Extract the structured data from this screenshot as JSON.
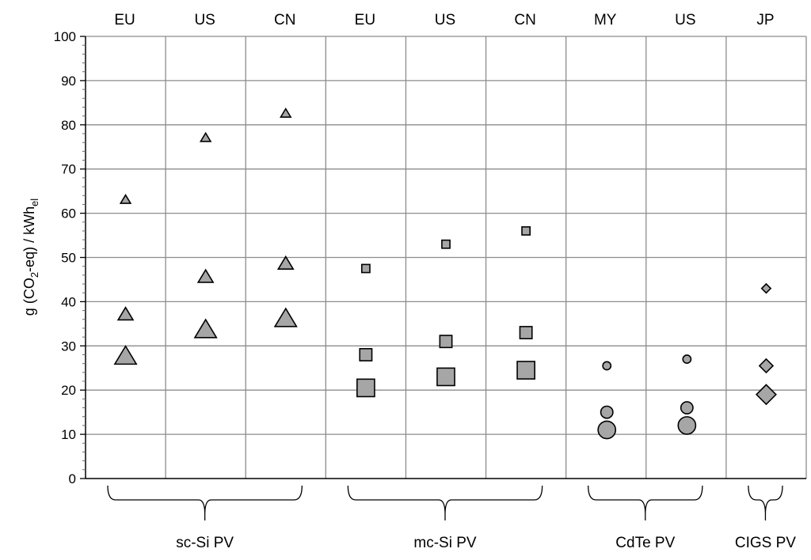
{
  "chart_data": {
    "type": "scatter",
    "ylabel": {
      "main": "g (CO",
      "sub2": "2",
      "mid": "-eq) / kWh",
      "subel": "el"
    },
    "ylim": [
      0,
      100
    ],
    "yticks": [
      0,
      10,
      20,
      30,
      40,
      50,
      60,
      70,
      80,
      90,
      100
    ],
    "grid": true,
    "colors": {
      "marker_fill": "#a6a6a6",
      "marker_stroke": "#000000",
      "grid": "#8c8c8c"
    },
    "columns": [
      {
        "label": "EU",
        "group": "sc-Si PV",
        "marker": "triangle",
        "values": [
          63,
          37,
          27.5
        ]
      },
      {
        "label": "US",
        "group": "sc-Si PV",
        "marker": "triangle",
        "values": [
          77,
          45.5,
          33.5
        ]
      },
      {
        "label": "CN",
        "group": "sc-Si PV",
        "marker": "triangle",
        "values": [
          82.5,
          48.5,
          36
        ]
      },
      {
        "label": "EU",
        "group": "mc-Si PV",
        "marker": "square",
        "values": [
          47.5,
          28,
          20.5
        ]
      },
      {
        "label": "US",
        "group": "mc-Si PV",
        "marker": "square",
        "values": [
          53,
          31,
          23
        ]
      },
      {
        "label": "CN",
        "group": "mc-Si PV",
        "marker": "square",
        "values": [
          56,
          33,
          24.5
        ]
      },
      {
        "label": "MY",
        "group": "CdTe PV",
        "marker": "circle",
        "values": [
          25.5,
          15,
          11
        ]
      },
      {
        "label": "US",
        "group": "CdTe PV",
        "marker": "circle",
        "values": [
          27,
          16,
          12
        ]
      },
      {
        "label": "JP",
        "group": "CIGS PV",
        "marker": "diamond",
        "values": [
          43,
          25.5,
          19
        ]
      }
    ],
    "groups": [
      "sc-Si PV",
      "mc-Si PV",
      "CdTe PV",
      "CIGS PV"
    ]
  }
}
